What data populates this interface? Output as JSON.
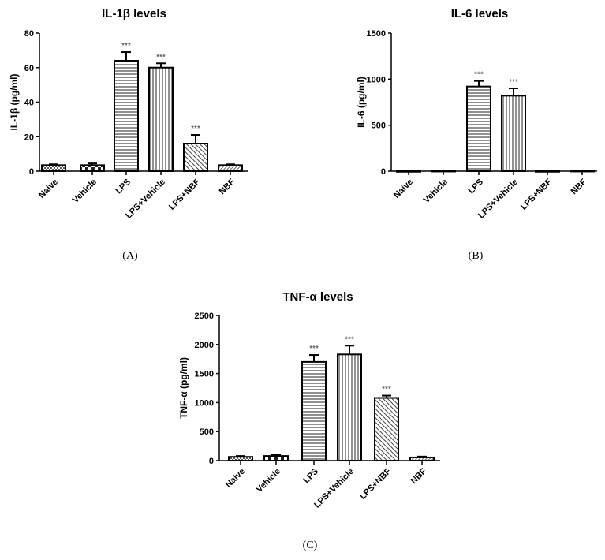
{
  "chart_data": [
    {
      "type": "bar",
      "panel_label": "(A)",
      "title": "IL-1β levels",
      "xlabel": "",
      "ylabel": "IL-1β (pg/ml)",
      "ylim": [
        0,
        80
      ],
      "yticks": [
        0,
        20,
        40,
        60,
        80
      ],
      "categories": [
        "Naive",
        "Vehicle",
        "LPS",
        "LPS+Vehicle",
        "LPS+NBF",
        "NBF"
      ],
      "values": [
        3.5,
        3.5,
        64,
        60,
        16,
        3.5
      ],
      "errors": [
        0.5,
        1,
        5,
        2.5,
        5,
        0.5
      ],
      "annotations": [
        "",
        "",
        "***",
        "***",
        "***",
        ""
      ]
    },
    {
      "type": "bar",
      "panel_label": "(B)",
      "title": "IL-6 levels",
      "xlabel": "",
      "ylabel": "IL-6 (pg/ml)",
      "ylim": [
        0,
        1500
      ],
      "yticks": [
        0,
        500,
        1000,
        1500
      ],
      "categories": [
        "Naive",
        "Vehicle",
        "LPS",
        "LPS+Vehicle",
        "LPS+NBF",
        "NBF"
      ],
      "values": [
        2,
        5,
        920,
        820,
        2,
        5
      ],
      "errors": [
        1,
        3,
        60,
        80,
        1,
        3
      ],
      "annotations": [
        "",
        "",
        "***",
        "***",
        "",
        ""
      ]
    },
    {
      "type": "bar",
      "panel_label": "(C)",
      "title": "TNF-α levels",
      "xlabel": "",
      "ylabel": "TNF-α (pg/ml)",
      "ylim": [
        0,
        2500
      ],
      "yticks": [
        0,
        500,
        1000,
        1500,
        2000,
        2500
      ],
      "categories": [
        "Naive",
        "Vehicle",
        "LPS",
        "LPS+Vehicle",
        "LPS+NBF",
        "NBF"
      ],
      "values": [
        65,
        80,
        1700,
        1830,
        1080,
        55
      ],
      "errors": [
        15,
        25,
        120,
        150,
        40,
        15
      ],
      "annotations": [
        "",
        "",
        "***",
        "***",
        "***",
        ""
      ]
    }
  ]
}
